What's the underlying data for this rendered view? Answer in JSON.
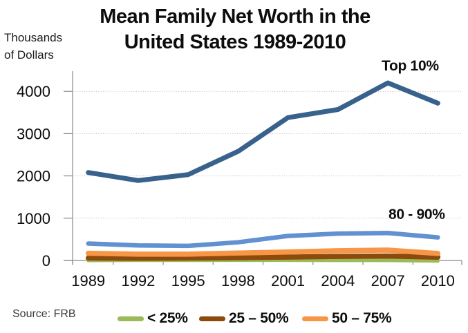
{
  "title": {
    "line1": "Mean Family Net Worth in the",
    "line2": "United States 1989-2010"
  },
  "y_axis_label": {
    "line1": "Thousands",
    "line2": "of Dollars"
  },
  "annotations": {
    "top10_label": "Top 10%",
    "p80_90_label": "80 - 90%"
  },
  "source": "Source: FRB",
  "legend": {
    "position": "bottom",
    "items": [
      {
        "label": "< 25%",
        "color": "#9BBB59"
      },
      {
        "label": "25 – 50%",
        "color": "#8C4A0D"
      },
      {
        "label": "50 – 75%",
        "color": "#F79646"
      }
    ]
  },
  "colors": {
    "top10": "#38618C",
    "p80_90": "#6191D1",
    "p50_75": "#F79646",
    "p25_50": "#8C4A0D",
    "lt25": "#9BBB59",
    "gridline": "#B7B7B7",
    "axis": "#898989",
    "text": "#0D0D0D"
  },
  "chart_data": {
    "type": "line",
    "title": "Mean Family Net Worth in the United States 1989-2010",
    "xlabel": "",
    "ylabel": "Thousands of Dollars",
    "x": [
      1989,
      1992,
      1995,
      1998,
      2001,
      2004,
      2007,
      2010
    ],
    "yticks": [
      0,
      1000,
      2000,
      3000,
      4000
    ],
    "ylim": [
      0,
      4400
    ],
    "grid": "horizontal-dotted",
    "legend_position": "bottom",
    "source": "FRB",
    "series": [
      {
        "name": "< 25%",
        "color": "#9BBB59",
        "values": [
          0,
          4,
          5,
          6,
          7,
          2,
          2,
          -13
        ]
      },
      {
        "name": "25 – 50%",
        "color": "#8C4A0D",
        "values": [
          57,
          52,
          57,
          65,
          80,
          95,
          105,
          78
        ]
      },
      {
        "name": "50 – 75%",
        "color": "#F79646",
        "values": [
          170,
          150,
          150,
          175,
          200,
          230,
          245,
          165
        ]
      },
      {
        "name": "80 - 90%",
        "color": "#6191D1",
        "values": [
          400,
          355,
          345,
          430,
          580,
          635,
          650,
          545
        ]
      },
      {
        "name": "Top 10%",
        "color": "#38618C",
        "values": [
          2080,
          1890,
          2030,
          2580,
          3380,
          3570,
          4200,
          3720
        ]
      }
    ]
  }
}
